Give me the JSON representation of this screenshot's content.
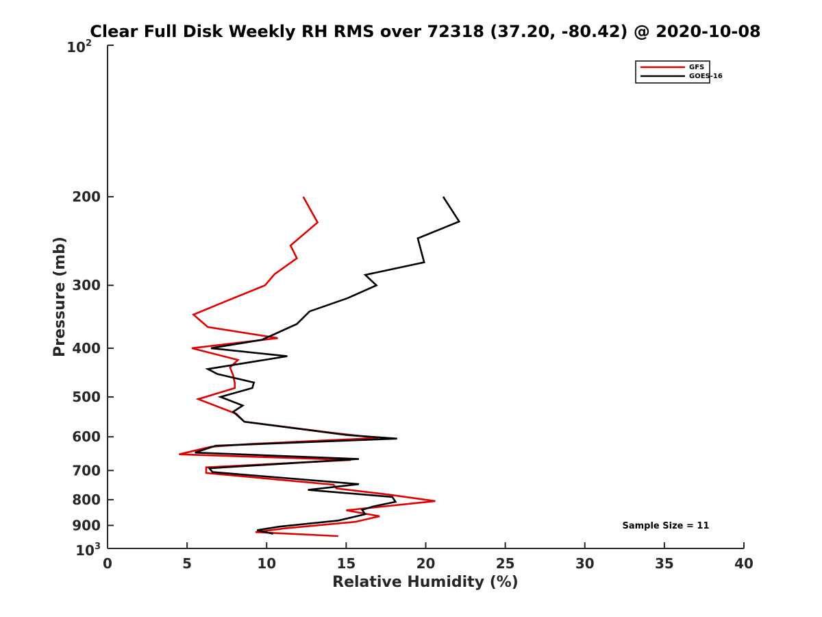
{
  "chart_data": {
    "type": "line",
    "title": "Clear Full Disk Weekly RH RMS over 72318 (37.20, -80.42) @ 2020-10-08",
    "xlabel": "Relative Humidity (%)",
    "ylabel": "Pressure (mb)",
    "xlim": [
      0,
      40
    ],
    "ylim": [
      100,
      1000
    ],
    "y_scale": "log",
    "y_reversed": true,
    "x_ticks": [
      0,
      5,
      10,
      15,
      20,
      25,
      30,
      35,
      40
    ],
    "x_tick_labels": [
      "0",
      "5",
      "10",
      "15",
      "20",
      "25",
      "30",
      "35",
      "40"
    ],
    "y_ticks": [
      200,
      300,
      400,
      500,
      600,
      700,
      800,
      900
    ],
    "y_tick_labels": [
      "200",
      "300",
      "400",
      "500",
      "600",
      "700",
      "800",
      "900"
    ],
    "y_end_labels": {
      "top_base": "10",
      "top_exp": "2",
      "bottom_base": "10",
      "bottom_exp": "3"
    },
    "legend_position": "top-right",
    "grid": false,
    "annotation": "Sample Size = 11",
    "series": [
      {
        "name": "GFS",
        "color": "#e00000",
        "points": [
          [
            12.3,
            200
          ],
          [
            13.2,
            225
          ],
          [
            11.5,
            250
          ],
          [
            11.9,
            265
          ],
          [
            10.5,
            285
          ],
          [
            9.9,
            300
          ],
          [
            7.2,
            325
          ],
          [
            5.4,
            343
          ],
          [
            6.3,
            363
          ],
          [
            10.7,
            382
          ],
          [
            5.3,
            400
          ],
          [
            8.2,
            422
          ],
          [
            7.7,
            437
          ],
          [
            7.9,
            453
          ],
          [
            8.0,
            470
          ],
          [
            8.0,
            480
          ],
          [
            5.7,
            505
          ],
          [
            8.1,
            540
          ],
          [
            8.6,
            560
          ],
          [
            14.3,
            590
          ],
          [
            17.0,
            603
          ],
          [
            9.0,
            620
          ],
          [
            6.5,
            628
          ],
          [
            4.5,
            650
          ],
          [
            15.3,
            667
          ],
          [
            6.2,
            690
          ],
          [
            6.2,
            708
          ],
          [
            14.2,
            747
          ],
          [
            14.4,
            760
          ],
          [
            17.7,
            782
          ],
          [
            20.6,
            805
          ],
          [
            15.0,
            840
          ],
          [
            17.1,
            863
          ],
          [
            15.6,
            885
          ],
          [
            11.2,
            912
          ],
          [
            9.3,
            928
          ],
          [
            14.5,
            945
          ]
        ]
      },
      {
        "name": "GOES-16",
        "color": "#000000",
        "points": [
          [
            21.1,
            200
          ],
          [
            22.1,
            224
          ],
          [
            19.5,
            242
          ],
          [
            19.9,
            270
          ],
          [
            16.2,
            286
          ],
          [
            16.9,
            300
          ],
          [
            15.1,
            318
          ],
          [
            12.7,
            338
          ],
          [
            11.9,
            358
          ],
          [
            9.7,
            385
          ],
          [
            6.5,
            400
          ],
          [
            11.3,
            415
          ],
          [
            6.3,
            440
          ],
          [
            6.9,
            450
          ],
          [
            9.2,
            468
          ],
          [
            9.1,
            480
          ],
          [
            7.1,
            500
          ],
          [
            8.5,
            520
          ],
          [
            7.9,
            535
          ],
          [
            8.6,
            560
          ],
          [
            15.0,
            595
          ],
          [
            18.2,
            605
          ],
          [
            6.8,
            625
          ],
          [
            5.5,
            645
          ],
          [
            15.8,
            664
          ],
          [
            6.4,
            693
          ],
          [
            6.6,
            705
          ],
          [
            15.8,
            745
          ],
          [
            12.6,
            765
          ],
          [
            17.9,
            790
          ],
          [
            18.1,
            808
          ],
          [
            16.7,
            825
          ],
          [
            16.0,
            838
          ],
          [
            16.2,
            855
          ],
          [
            14.5,
            880
          ],
          [
            10.8,
            905
          ],
          [
            9.4,
            920
          ],
          [
            10.4,
            935
          ]
        ]
      }
    ]
  }
}
